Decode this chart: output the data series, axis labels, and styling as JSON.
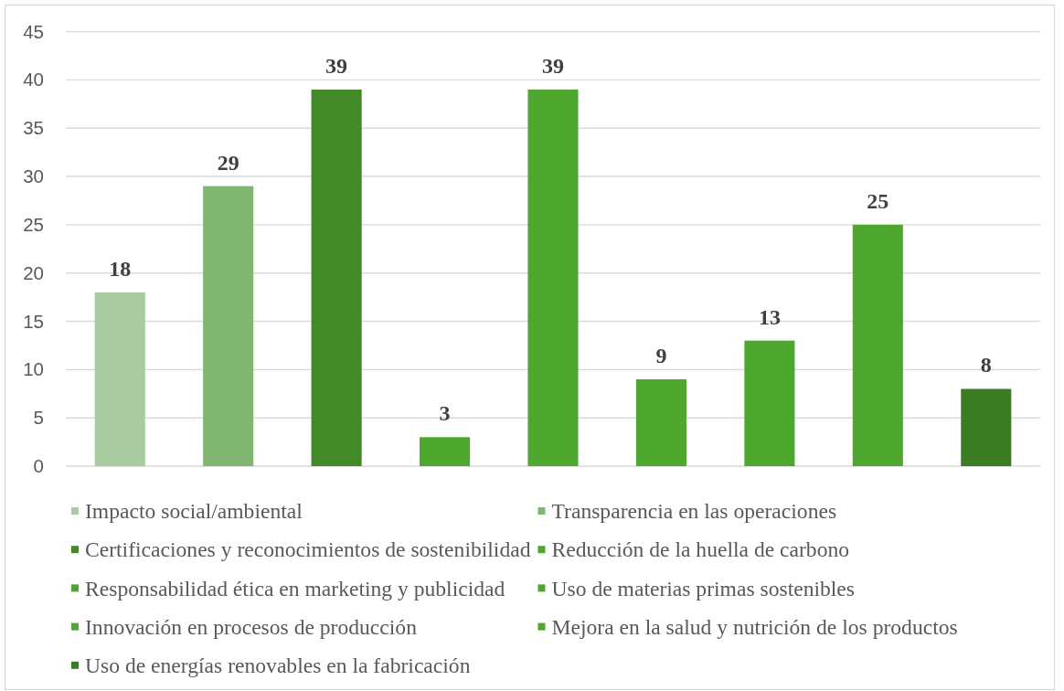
{
  "chart_data": {
    "type": "bar",
    "categories": [
      null
    ],
    "series": [
      {
        "name": "Impacto social/ambiental",
        "color": "#a9cba0",
        "values": [
          18
        ]
      },
      {
        "name": "Transparencia en las operaciones",
        "color": "#80b672",
        "values": [
          29
        ]
      },
      {
        "name": "Certificaciones y reconocimientos de sostenibilidad",
        "color": "#418a27",
        "values": [
          39
        ]
      },
      {
        "name": "Reducción de la huella de carbono",
        "color": "#4ea72e",
        "values": [
          3
        ]
      },
      {
        "name": "Responsabilidad ética en marketing y publicidad",
        "color": "#4ea72e",
        "values": [
          39
        ]
      },
      {
        "name": "Uso de materias primas sostenibles",
        "color": "#4ea72e",
        "values": [
          9
        ]
      },
      {
        "name": "Innovación en procesos de producción",
        "color": "#4ea72e",
        "values": [
          13
        ]
      },
      {
        "name": "Mejora en la salud y nutrición de los productos",
        "color": "#4ea72e",
        "values": [
          25
        ]
      },
      {
        "name": "Uso de energías renovables en la fabricación",
        "color": "#3b7d23",
        "values": [
          8
        ]
      }
    ],
    "ylim": [
      0,
      45
    ],
    "yticks": [
      0,
      5,
      10,
      15,
      20,
      25,
      30,
      35,
      40,
      45
    ],
    "grid": "y",
    "legend": "bottom",
    "data_labels": true,
    "tick_labels": "y"
  }
}
